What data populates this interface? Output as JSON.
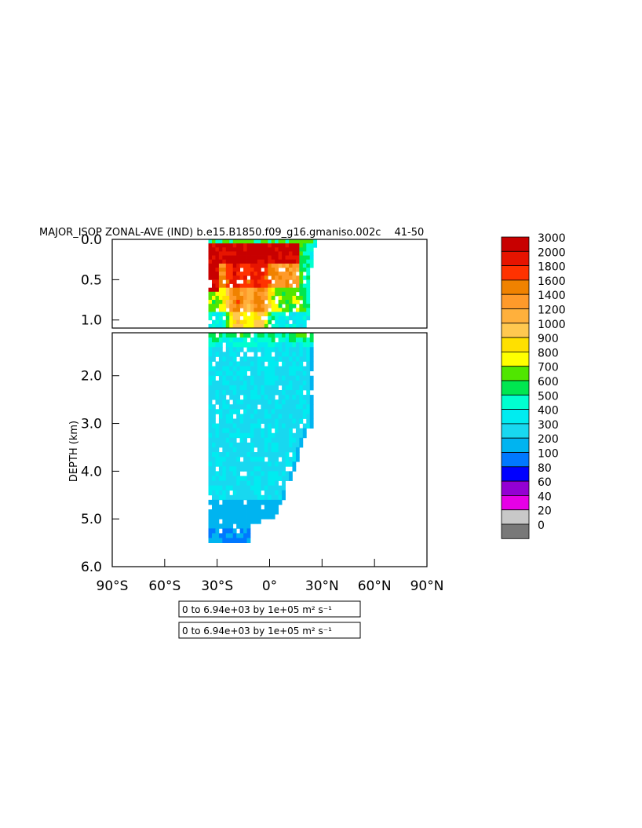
{
  "title": "MAJOR_ISOP ZONAL-AVE (IND) b.e15.B1850.f09_g16.gmaniso.002c  41-50 ",
  "chart_data": {
    "type": "heatmap",
    "title": "MAJOR_ISOP ZONAL-AVE (IND) b.e15.B1850.f09_g16.gmaniso.002c  41-50 ",
    "ylabel": "DEPTH (km)",
    "xlabel": "",
    "x_ticks": [
      "90°S",
      "60°S",
      "30°S",
      "0°",
      "30°N",
      "60°N",
      "90°N"
    ],
    "x_values": [
      -90,
      -60,
      -30,
      0,
      30,
      60,
      90
    ],
    "xlim": [
      -90,
      90
    ],
    "upper_panel": {
      "ylim": [
        0.0,
        1.1
      ],
      "y_ticks": [
        "0.0",
        "0.5",
        "1.0"
      ],
      "y_values": [
        0.0,
        0.5,
        1.0
      ]
    },
    "lower_panel": {
      "ylim": [
        1.1,
        6.0
      ],
      "y_ticks": [
        "2.0",
        "3.0",
        "4.0",
        "5.0",
        "6.0"
      ],
      "y_values": [
        2.0,
        3.0,
        4.0,
        5.0,
        6.0
      ]
    },
    "colorbar": {
      "levels": [
        "3000",
        "2000",
        "1800",
        "1600",
        "1400",
        "1200",
        "1000",
        "900",
        "800",
        "700",
        "600",
        "500",
        "400",
        "300",
        "200",
        "100",
        "80",
        "60",
        "40",
        "20",
        "0"
      ],
      "colors": [
        "#c80000",
        "#e61400",
        "#ff3200",
        "#f08200",
        "#ff9a2a",
        "#ffb03c",
        "#ffc850",
        "#ffe000",
        "#ffff00",
        "#50e600",
        "#00e650",
        "#00ffd0",
        "#00ecf0",
        "#18d8f0",
        "#00b4f0",
        "#0078ff",
        "#0000ff",
        "#9400d3",
        "#e600e6",
        "#c8c8c8",
        "#787878"
      ]
    },
    "data_notes": [
      "0 to 6.94e+03 by 1e+05 m² s⁻¹",
      "0 to 6.94e+03 by 1e+05 m² s⁻¹"
    ],
    "legend": "right"
  }
}
